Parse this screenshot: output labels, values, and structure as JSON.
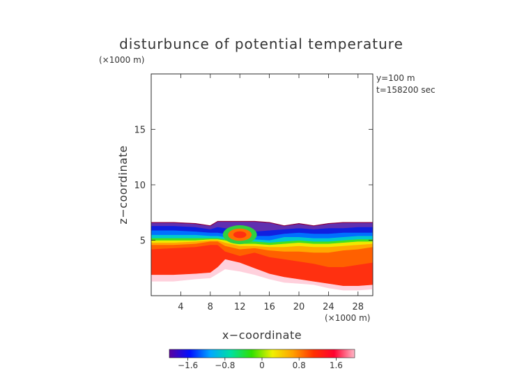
{
  "chart_data": {
    "type": "heatmap",
    "title": "disturbunce of potential temperature",
    "title_unit": "(×1000 m)",
    "xlabel": "x−coordinate",
    "ylabel": "z−coordinate",
    "x_unit": "(×1000 m)",
    "info": [
      "y=100  m",
      "t=158200 sec"
    ],
    "xlim": [
      0,
      30
    ],
    "ylim": [
      0,
      20
    ],
    "x_ticks": [
      {
        "value": 4,
        "label": "4"
      },
      {
        "value": 8,
        "label": "8"
      },
      {
        "value": 12,
        "label": "12"
      },
      {
        "value": 16,
        "label": "16"
      },
      {
        "value": 20,
        "label": "20"
      },
      {
        "value": 24,
        "label": "24"
      },
      {
        "value": 28,
        "label": "28"
      }
    ],
    "y_ticks": [
      {
        "value": 5,
        "label": "5"
      },
      {
        "value": 10,
        "label": "10"
      },
      {
        "value": 15,
        "label": "15"
      }
    ],
    "colorbar": {
      "range": [
        -2.0,
        2.0
      ],
      "ticks": [
        {
          "value": -1.6,
          "label": "−1.6"
        },
        {
          "value": -0.8,
          "label": "−0.8"
        },
        {
          "value": 0,
          "label": "0"
        },
        {
          "value": 0.8,
          "label": "0.8"
        },
        {
          "value": 1.6,
          "label": "1.6"
        }
      ],
      "colors": [
        "#5a00a0",
        "#0010ff",
        "#00a8ff",
        "#00e0a0",
        "#30e000",
        "#f0f000",
        "#ffa000",
        "#ff3000",
        "#ff0030",
        "#ffb8c8"
      ]
    },
    "field_bands": [
      {
        "value": 1.9,
        "color": "#ffd0dc"
      },
      {
        "value": 1.5,
        "color": "#ff3010"
      },
      {
        "value": 1.3,
        "color": "#ff6000"
      },
      {
        "value": 0.8,
        "color": "#ffa800"
      },
      {
        "value": 0.3,
        "color": "#f0e800"
      },
      {
        "value": 0.0,
        "color": "#40e020"
      },
      {
        "value": -0.4,
        "color": "#00c8d0"
      },
      {
        "value": -0.9,
        "color": "#0070ff"
      },
      {
        "value": -1.4,
        "color": "#1020e0"
      },
      {
        "value": -1.9,
        "color": "#6030b0"
      }
    ],
    "profile_x": [
      0,
      3,
      6,
      8,
      9,
      10,
      12,
      14,
      16,
      18,
      20,
      22,
      24,
      26,
      28,
      30
    ],
    "field_top": [
      6.6,
      6.6,
      6.5,
      6.3,
      6.7,
      6.7,
      6.7,
      6.7,
      6.6,
      6.3,
      6.5,
      6.3,
      6.5,
      6.6,
      6.6,
      6.6
    ],
    "field_bottom": [
      1.3,
      1.3,
      1.5,
      1.6,
      2.0,
      2.4,
      2.2,
      1.9,
      1.5,
      1.2,
      1.1,
      1.0,
      0.7,
      0.5,
      0.5,
      0.6
    ],
    "band_boundaries": [
      [
        1.9,
        1.9,
        2.0,
        2.1,
        2.6,
        3.3,
        3.0,
        2.5,
        2.0,
        1.7,
        1.5,
        1.3,
        1.1,
        0.9,
        0.9,
        1.0
      ],
      [
        4.2,
        4.3,
        4.4,
        4.6,
        4.6,
        4.0,
        3.6,
        3.9,
        3.5,
        3.3,
        3.1,
        2.9,
        2.6,
        2.6,
        2.8,
        3.0
      ],
      [
        4.6,
        4.6,
        4.7,
        4.9,
        4.9,
        4.5,
        4.2,
        4.3,
        4.1,
        4.0,
        4.0,
        3.9,
        3.9,
        4.1,
        4.2,
        4.4
      ],
      [
        4.8,
        4.8,
        4.9,
        5.0,
        5.0,
        4.8,
        4.5,
        4.5,
        4.4,
        4.4,
        4.5,
        4.4,
        4.4,
        4.5,
        4.6,
        4.7
      ],
      [
        5.0,
        5.0,
        5.0,
        5.1,
        5.1,
        5.0,
        4.7,
        4.7,
        4.6,
        4.7,
        4.8,
        4.7,
        4.7,
        4.8,
        4.9,
        4.9
      ],
      [
        5.2,
        5.2,
        5.2,
        5.2,
        5.2,
        5.1,
        4.9,
        4.9,
        4.8,
        4.9,
        5.0,
        4.9,
        4.9,
        5.0,
        5.1,
        5.1
      ],
      [
        5.5,
        5.5,
        5.5,
        5.4,
        5.4,
        5.3,
        5.1,
        5.1,
        5.0,
        5.3,
        5.3,
        5.2,
        5.2,
        5.3,
        5.4,
        5.4
      ],
      [
        5.9,
        5.9,
        5.8,
        5.7,
        5.7,
        5.6,
        5.4,
        5.4,
        5.4,
        5.6,
        5.7,
        5.6,
        5.6,
        5.7,
        5.7,
        5.7
      ],
      [
        6.3,
        6.3,
        6.2,
        6.0,
        6.2,
        6.1,
        5.9,
        5.8,
        5.9,
        6.0,
        6.1,
        6.0,
        6.1,
        6.1,
        6.2,
        6.2
      ]
    ],
    "anomaly": {
      "center": [
        12,
        5.5
      ],
      "radius": [
        1.6,
        0.55
      ],
      "color": "#ff7000"
    },
    "ring": {
      "center": [
        12,
        5.5
      ],
      "radius": [
        2.3,
        0.85
      ],
      "color": "#30d040"
    }
  }
}
